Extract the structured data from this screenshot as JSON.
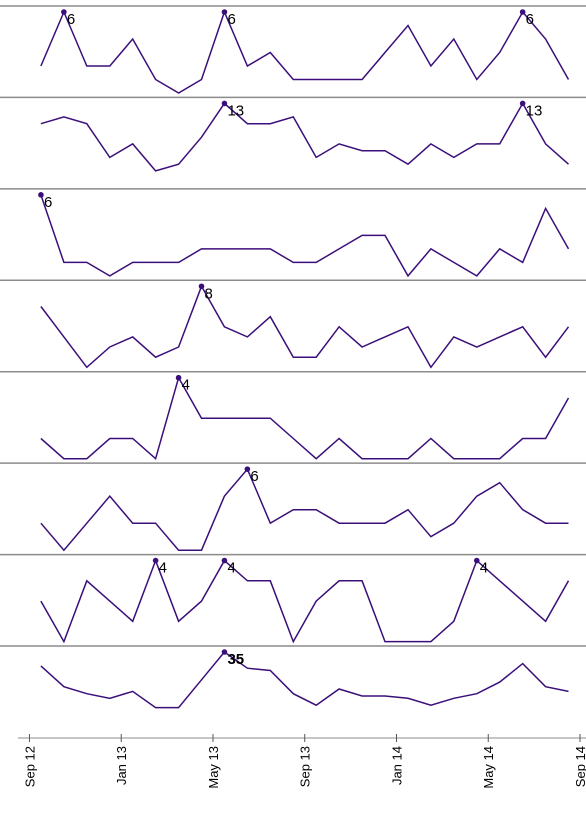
{
  "chart_data": {
    "type": "line",
    "color": "#3b0f7a",
    "x": [
      0.5,
      1.5,
      2.5,
      3.5,
      4.5,
      5.5,
      6.5,
      7.5,
      8.5,
      9.5,
      10.5,
      11.5,
      12.5,
      13.5,
      14.5,
      15.5,
      16.5,
      17.5,
      18.5,
      19.5,
      20.5,
      21.5,
      22.5,
      23.5
    ],
    "xlim": [
      -0.5,
      24
    ],
    "xticks": [
      {
        "value": 0,
        "label": "Sep 12"
      },
      {
        "value": 4,
        "label": "Jan 13"
      },
      {
        "value": 8,
        "label": "May 13"
      },
      {
        "value": 12,
        "label": "Sep 13"
      },
      {
        "value": 16,
        "label": "Jan 14"
      },
      {
        "value": 20,
        "label": "May 14"
      },
      {
        "value": 24,
        "label": "Sep 14"
      }
    ],
    "panels": [
      {
        "ylim": [
          0,
          6
        ],
        "values": [
          2,
          6,
          2,
          2,
          4,
          1,
          0,
          1,
          6,
          2,
          3,
          1,
          1,
          1,
          1,
          3,
          5,
          2,
          4,
          1,
          3,
          6,
          4,
          1
        ]
      },
      {
        "ylim": [
          1,
          13
        ],
        "values": [
          10,
          11,
          10,
          5,
          7,
          3,
          4,
          8,
          13,
          10,
          10,
          11,
          5,
          7,
          6,
          6,
          4,
          7,
          5,
          7,
          7,
          13,
          7,
          4
        ]
      },
      {
        "ylim": [
          0,
          6
        ],
        "values": [
          6,
          1,
          1,
          0,
          1,
          1,
          1,
          2,
          2,
          2,
          2,
          1,
          1,
          2,
          3,
          3,
          0,
          2,
          1,
          0,
          2,
          1,
          5,
          2
        ]
      },
      {
        "ylim": [
          0,
          8
        ],
        "values": [
          6,
          3,
          0,
          2,
          3,
          1,
          2,
          8,
          4,
          3,
          5,
          1,
          1,
          4,
          2,
          3,
          4,
          0,
          3,
          2,
          3,
          4,
          1,
          4
        ]
      },
      {
        "ylim": [
          0,
          4
        ],
        "values": [
          1,
          0,
          0,
          1,
          1,
          0,
          4,
          2,
          2,
          2,
          2,
          1,
          0,
          1,
          0,
          0,
          0,
          1,
          0,
          0,
          0,
          1,
          1,
          3
        ]
      },
      {
        "ylim": [
          0,
          6
        ],
        "values": [
          2,
          0,
          2,
          4,
          2,
          2,
          0,
          0,
          4,
          6,
          2,
          3,
          3,
          2,
          2,
          2,
          3,
          1,
          2,
          4,
          5,
          3,
          2,
          2
        ]
      },
      {
        "ylim": [
          0,
          4
        ],
        "values": [
          2,
          0,
          3,
          2,
          1,
          4,
          1,
          2,
          4,
          3,
          3,
          0,
          2,
          3,
          3,
          0,
          0,
          0,
          1,
          4,
          3,
          2,
          1,
          3
        ]
      },
      {
        "ylim": [
          0,
          35
        ],
        "label_weight": "bold",
        "values": [
          29,
          20,
          17,
          15,
          18,
          11,
          11,
          23,
          35,
          28,
          27,
          17,
          12,
          19,
          16,
          16,
          15,
          12,
          15,
          17,
          22,
          30,
          20,
          18
        ]
      }
    ]
  }
}
